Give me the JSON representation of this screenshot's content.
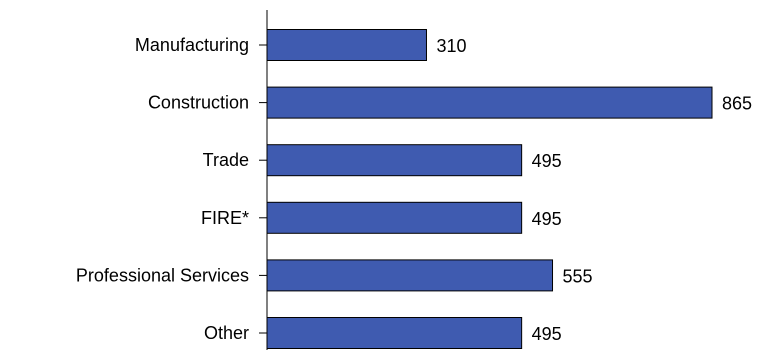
{
  "chart_data": {
    "type": "bar",
    "orientation": "horizontal",
    "categories": [
      "Manufacturing",
      "Construction",
      "Trade",
      "FIRE*",
      "Professional Services",
      "Other"
    ],
    "values": [
      310,
      865,
      495,
      495,
      555,
      495
    ],
    "data_labels": [
      "310",
      "865",
      "495",
      "495",
      "555",
      "495"
    ],
    "title": "",
    "xlabel": "",
    "ylabel": "",
    "xlim": [
      0,
      865
    ],
    "grid": false,
    "legend": "none",
    "bar_color": "#3f5bb0",
    "bar_edge_color": "#000000"
  }
}
